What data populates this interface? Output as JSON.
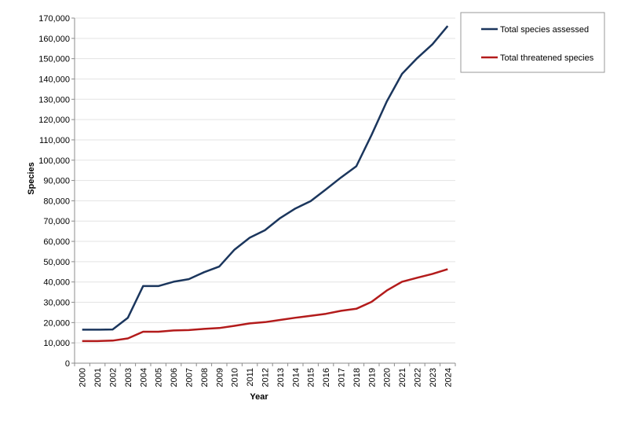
{
  "chart_data": {
    "type": "line",
    "title": "",
    "xlabel": "Year",
    "ylabel": "Species",
    "ylim": [
      0,
      170000
    ],
    "ytick_step": 10000,
    "grid": true,
    "legend_position": "top-right",
    "x": [
      2000,
      2001,
      2002,
      2003,
      2004,
      2005,
      2006,
      2007,
      2008,
      2009,
      2010,
      2011,
      2012,
      2013,
      2014,
      2015,
      2016,
      2017,
      2018,
      2019,
      2020,
      2021,
      2022,
      2023,
      2024
    ],
    "series": [
      {
        "name": "Total species assessed",
        "color": "#1b365d",
        "values": [
          16500,
          16500,
          16600,
          22400,
          38000,
          38000,
          40100,
          41400,
          44800,
          47600,
          55900,
          61800,
          65500,
          71500,
          76200,
          79800,
          85600,
          91500,
          97000,
          112400,
          128900,
          142500,
          150300,
          157100,
          166100
        ]
      },
      {
        "name": "Total threatened species",
        "color": "#b31b1b",
        "values": [
          10900,
          10900,
          11100,
          12200,
          15500,
          15500,
          16100,
          16300,
          16900,
          17300,
          18400,
          19600,
          20200,
          21300,
          22400,
          23300,
          24300,
          25800,
          26800,
          30200,
          35800,
          40100,
          42100,
          44000,
          46300
        ]
      }
    ]
  }
}
